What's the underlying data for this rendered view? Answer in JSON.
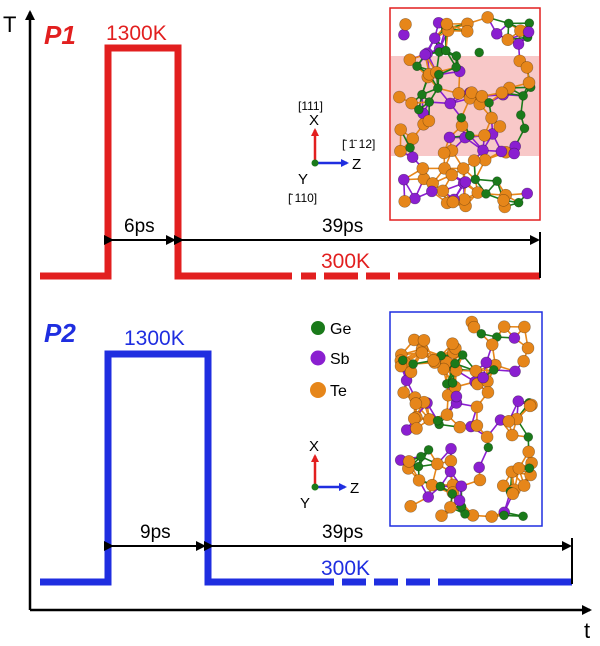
{
  "axes": {
    "y_label": "T",
    "x_label": "t"
  },
  "panels": [
    {
      "label": "P1",
      "color": "#e21f1f",
      "high_temp": "1300K",
      "low_temp": "300K",
      "pulse_duration": "6ps",
      "relax_duration": "39ps",
      "orientation": {
        "x_dir": "[111]",
        "z_dir": "[̄ 1̄ 12]",
        "y_dir": "[̄ 110]",
        "x": "X",
        "y": "Y",
        "z": "Z"
      }
    },
    {
      "label": "P2",
      "color": "#1f2ee0",
      "high_temp": "1300K",
      "low_temp": "300K",
      "pulse_duration": "9ps",
      "relax_duration": "39ps",
      "orientation": {
        "x": "X",
        "y": "Y",
        "z": "Z"
      }
    }
  ],
  "legend": [
    {
      "label": "Ge",
      "color": "#1a7a1a"
    },
    {
      "label": "Sb",
      "color": "#8a1fd0"
    },
    {
      "label": "Te",
      "color": "#e6861a"
    }
  ]
}
